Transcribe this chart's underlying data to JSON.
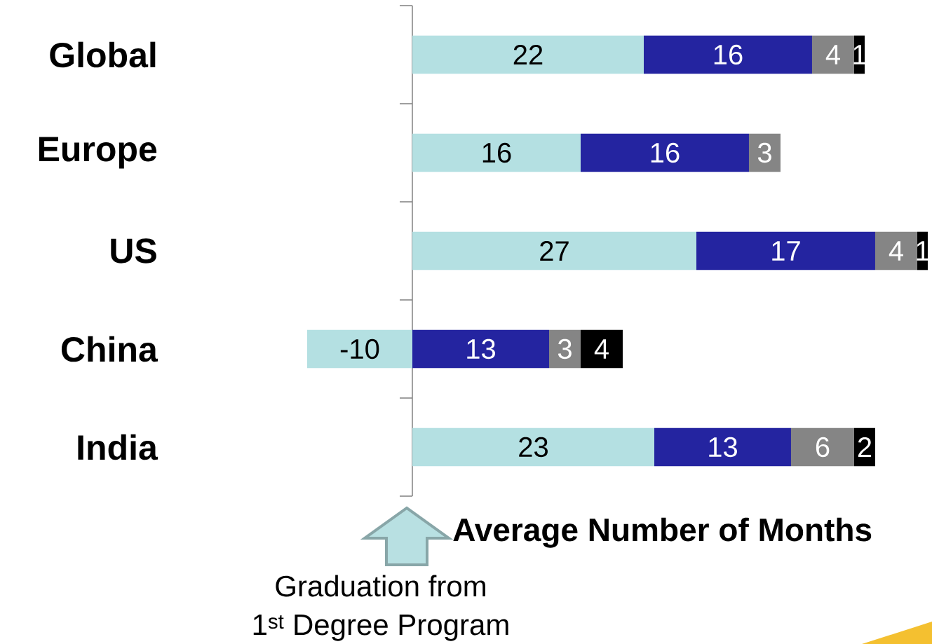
{
  "chart_data": {
    "type": "bar",
    "orientation": "horizontal",
    "stacked": true,
    "categories": [
      "Global",
      "Europe",
      "US",
      "China",
      "India"
    ],
    "series": [
      {
        "color": "#b4e0e2",
        "values": [
          22,
          16,
          27,
          -10,
          23
        ]
      },
      {
        "color": "#2424a0",
        "values": [
          16,
          16,
          17,
          13,
          13
        ]
      },
      {
        "color": "#858585",
        "values": [
          4,
          3,
          4,
          3,
          6
        ]
      },
      {
        "color": "#000000",
        "values": [
          1,
          null,
          1,
          4,
          2
        ]
      }
    ],
    "xlabel": "Average Number of Months",
    "tick_labels": "y",
    "data_labels": true,
    "annotations": [
      "Graduation from",
      "1$^{st}$ Degree Program"
    ]
  }
}
